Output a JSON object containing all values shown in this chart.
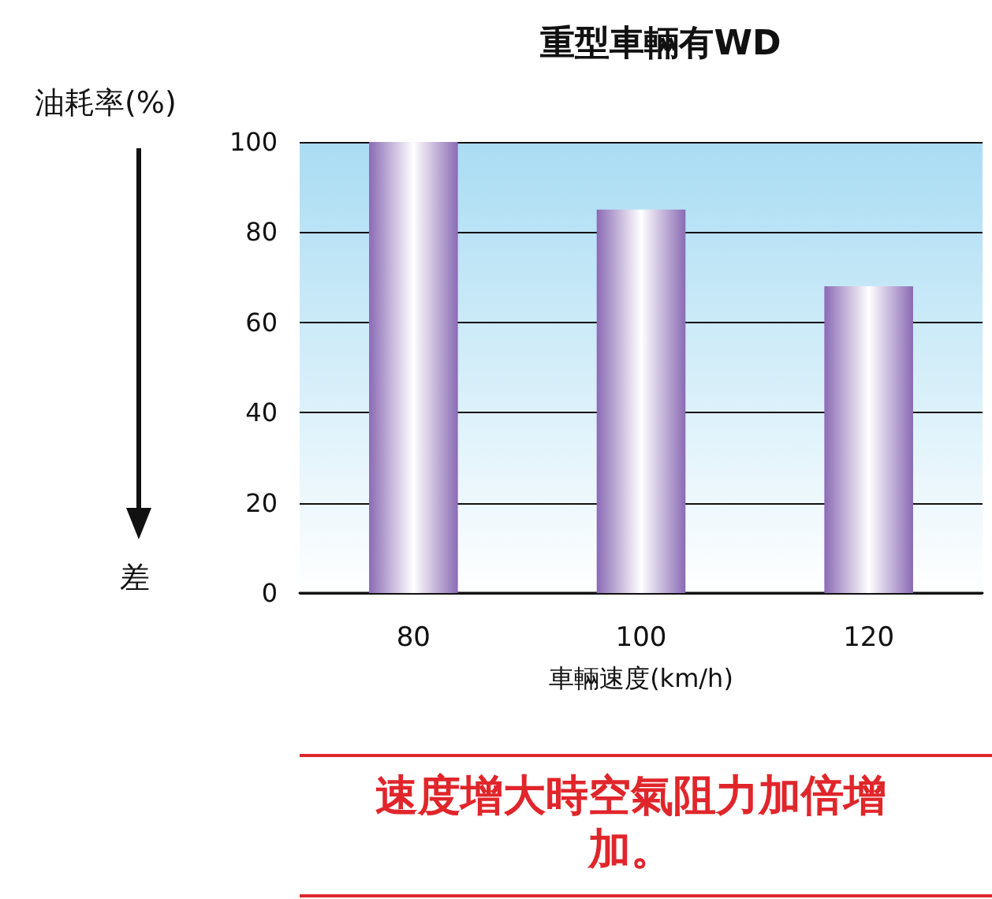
{
  "chart_data": {
    "type": "bar",
    "title": "重型車輛有WD",
    "xlabel": "車輛速度(km/h)",
    "ylabel": "油耗率(%)",
    "categories": [
      "80",
      "100",
      "120"
    ],
    "values": [
      100,
      85,
      68
    ],
    "color": "#8a6bb4",
    "ylim": [
      0,
      100
    ],
    "yticks": [
      0,
      20,
      40,
      60,
      80,
      100
    ],
    "grid": "y",
    "annotations": [
      "差",
      "速度增大時空氣阻力加倍增加。"
    ]
  }
}
